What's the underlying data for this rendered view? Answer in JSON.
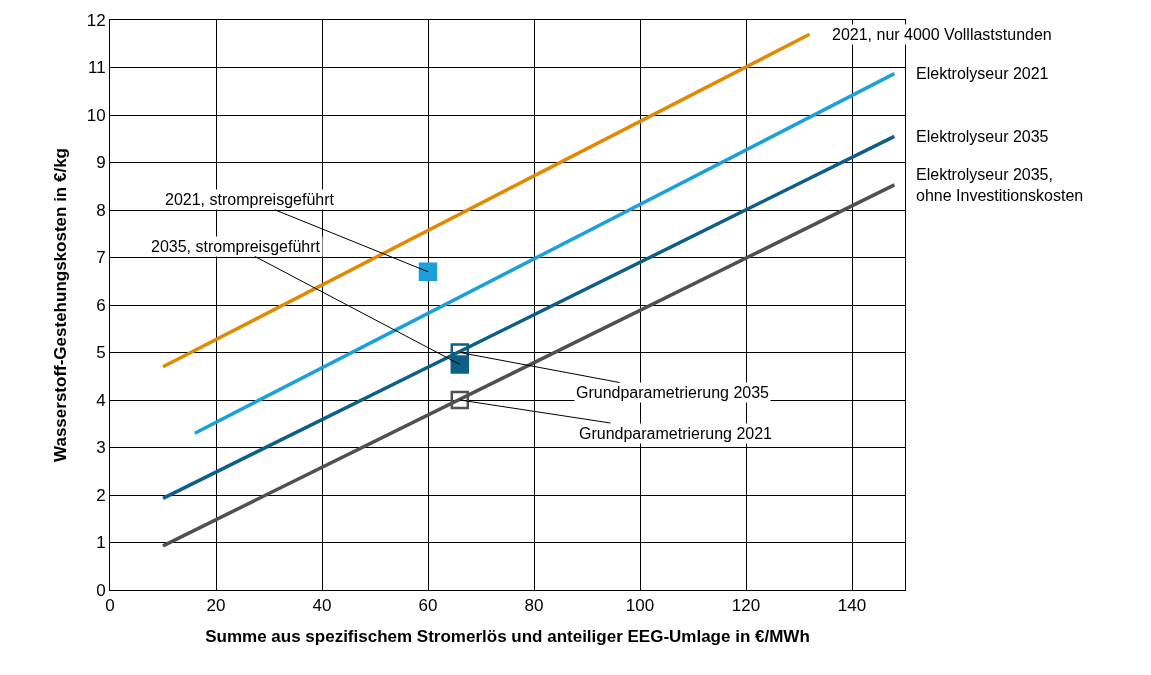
{
  "chart_data": {
    "type": "line",
    "xlabel": "Summe aus spezifischem Stromerlös und anteiliger EEG-Umlage in €/MWh",
    "ylabel": "Wasserstoff-Gestehungskosten in €/kg",
    "xlim": [
      0,
      150
    ],
    "xticks": [
      0,
      20,
      40,
      60,
      80,
      100,
      120,
      140
    ],
    "ylim": [
      0,
      12
    ],
    "yticks": [
      0,
      1,
      2,
      3,
      4,
      5,
      6,
      7,
      8,
      9,
      10,
      11,
      12
    ],
    "grid": true,
    "legend": false,
    "series": [
      {
        "name": "2021, nur 4000 Volllaststunden",
        "color": "#e08a00",
        "x": [
          10,
          132
        ],
        "values": [
          4.7,
          11.7
        ]
      },
      {
        "name": "Elektrolyseur 2021",
        "color": "#1ca0d8",
        "x": [
          16,
          148
        ],
        "values": [
          3.3,
          10.87
        ]
      },
      {
        "name": "Elektrolyseur 2035",
        "color": "#0d5f86",
        "x": [
          10,
          148
        ],
        "values": [
          1.93,
          9.55
        ]
      },
      {
        "name": "Elektrolyseur 2035,\nohne Investitionskosten",
        "color": "#505050",
        "x": [
          10,
          148
        ],
        "values": [
          0.93,
          8.53
        ]
      },
      {
        "name": "2021, strompreisgeführt",
        "type": "scatter",
        "marker": "square",
        "color": "#1ca0d8",
        "x": [
          60
        ],
        "values": [
          6.7
        ]
      },
      {
        "name": "2035, strompreisgeführt",
        "type": "scatter",
        "marker": "square",
        "color": "#0d5f86",
        "x": [
          66
        ],
        "values": [
          4.75
        ]
      },
      {
        "name": "Grundparametrierung 2035",
        "type": "scatter",
        "marker": "square-open",
        "color": "#0d5f86",
        "x": [
          66
        ],
        "values": [
          5.0
        ]
      },
      {
        "name": "Grundparametrierung 2021",
        "type": "scatter",
        "marker": "square-open",
        "color": "#505050",
        "x": [
          66
        ],
        "values": [
          4.0
        ]
      }
    ]
  }
}
